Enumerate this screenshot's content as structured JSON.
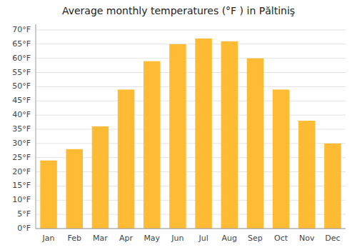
{
  "chart_data": {
    "type": "bar",
    "title": "Average monthly temperatures (°F ) in Păltiniş",
    "categories": [
      "Jan",
      "Feb",
      "Mar",
      "Apr",
      "May",
      "Jun",
      "Jul",
      "Aug",
      "Sep",
      "Oct",
      "Nov",
      "Dec"
    ],
    "values": [
      24,
      28,
      36,
      49,
      59,
      65,
      67,
      66,
      60,
      49,
      38,
      30
    ],
    "color": "#FFBB33",
    "ylim": [
      0,
      72
    ],
    "yticks": [
      {
        "value": 0,
        "label": "0°F"
      },
      {
        "value": 5,
        "label": "5°F"
      },
      {
        "value": 10,
        "label": "10°F"
      },
      {
        "value": 15,
        "label": "15°F"
      },
      {
        "value": 20,
        "label": "20°F"
      },
      {
        "value": 25,
        "label": "25°F"
      },
      {
        "value": 30,
        "label": "30°F"
      },
      {
        "value": 35,
        "label": "35°F"
      },
      {
        "value": 40,
        "label": "40°F"
      },
      {
        "value": 45,
        "label": "45°F"
      },
      {
        "value": 50,
        "label": "50°F"
      },
      {
        "value": 55,
        "label": "55°F"
      },
      {
        "value": 60,
        "label": "60°F"
      },
      {
        "value": 65,
        "label": "65°F"
      },
      {
        "value": 70,
        "label": "70°F"
      }
    ],
    "grid": true
  }
}
